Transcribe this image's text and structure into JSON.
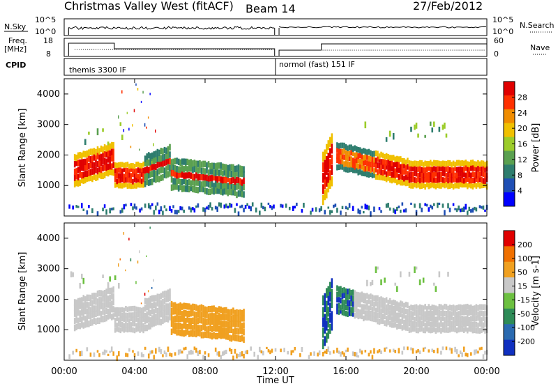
{
  "header": {
    "title": "Christmas Valley West (fitACF)",
    "beam": "Beam 14",
    "date": "27/Feb/2012"
  },
  "strips": {
    "nsky_label": "N.Sky",
    "nsky_ticks": [
      "10^5",
      "10^0"
    ],
    "nsearch_label": "N.Search",
    "nsearch_ticks": [
      "10^5",
      "10^0"
    ],
    "freq_label_1": "Freq.",
    "freq_label_2": "[MHz]",
    "freq_ticks": [
      "18",
      "8"
    ],
    "nave_label": "Nave",
    "nave_ticks": [
      "60",
      "0"
    ],
    "cpid_label": "CPID",
    "cpid_modes": [
      "themis 3300 IF",
      "normol (fast) 151 IF"
    ]
  },
  "chart_data": [
    {
      "type": "heatmap",
      "ylabel": "Slant Range [km]",
      "xlabel": "",
      "x_range_hours": [
        0,
        24
      ],
      "ylim": [
        0,
        4500
      ],
      "yticks": [
        "1000",
        "2000",
        "3000",
        "4000"
      ],
      "colorbar": {
        "label": "Power [dB]",
        "ticks": [
          "4",
          "8",
          "12",
          "16",
          "20",
          "24",
          "28"
        ],
        "range": [
          0,
          30
        ],
        "colors": [
          "#0000ff",
          "#1f4fb4",
          "#2e7d6e",
          "#5aa050",
          "#9ccc2a",
          "#f0c000",
          "#f08c00",
          "#ff3000",
          "#e00000"
        ]
      }
    },
    {
      "type": "heatmap",
      "ylabel": "Slant Range [km]",
      "xlabel": "Time UT",
      "xticks": [
        "00:00",
        "04:00",
        "08:00",
        "12:00",
        "16:00",
        "20:00",
        "00:00"
      ],
      "ylim": [
        0,
        4500
      ],
      "yticks": [
        "1000",
        "2000",
        "3000",
        "4000"
      ],
      "colorbar": {
        "label": "Velocity [m s-1]",
        "ticks": [
          "200",
          "100",
          "50",
          "15",
          "-15",
          "-50",
          "-100",
          "-200"
        ],
        "colors": [
          "#1030c0",
          "#2a6ab0",
          "#2e8b57",
          "#6cc040",
          "#c8c8c8",
          "#f0a020",
          "#f07000",
          "#e00000"
        ]
      }
    }
  ]
}
